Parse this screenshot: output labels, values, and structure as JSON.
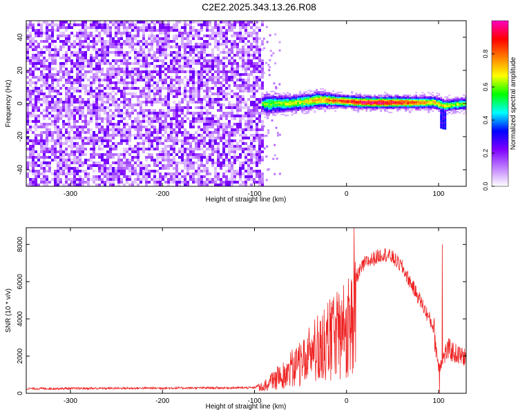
{
  "title": "C2E2.2025.343.13.26.R08",
  "chart_data": [
    {
      "type": "heatmap",
      "title": "C2E2.2025.343.13.26.R08",
      "xlabel": "Height of straight line (km)",
      "ylabel": "Frequency (Hz)",
      "xlim": [
        -348,
        130
      ],
      "ylim": [
        -50,
        50
      ],
      "x_ticks": [
        -300,
        -200,
        -100,
        0,
        100
      ],
      "x_tick_labels": [
        "-300",
        "-200",
        "-100",
        "0",
        "100"
      ],
      "y_ticks": [
        -40,
        -20,
        0,
        20,
        40
      ],
      "y_tick_labels": [
        "-40",
        "-20",
        "0",
        "20",
        "40"
      ],
      "noise_region_x": [
        -348,
        -92
      ],
      "signal_band": [
        {
          "x": -92,
          "freq": 0.0,
          "halfwidth": 5
        },
        {
          "x": -60,
          "freq": 0.5,
          "halfwidth": 4
        },
        {
          "x": -30,
          "freq": 2.5,
          "halfwidth": 4
        },
        {
          "x": -10,
          "freq": 2.0,
          "halfwidth": 3
        },
        {
          "x": 20,
          "freq": 1.0,
          "halfwidth": 3
        },
        {
          "x": 60,
          "freq": 1.0,
          "halfwidth": 3
        },
        {
          "x": 95,
          "freq": 1.0,
          "halfwidth": 3
        },
        {
          "x": 105,
          "freq": -1.0,
          "halfwidth": 3
        },
        {
          "x": 130,
          "freq": 0.5,
          "halfwidth": 3
        }
      ],
      "colorbar": {
        "label": "Normalized spectral amplitude",
        "range": [
          0,
          1
        ],
        "ticks": [
          0.0,
          0.2,
          0.4,
          0.6,
          0.8
        ],
        "tick_labels": [
          "0.0",
          "0.2",
          "0.4",
          "0.6",
          "0.8"
        ],
        "colors": [
          "#ffffff",
          "#c080ff",
          "#7f00ff",
          "#0000ff",
          "#00ffff",
          "#00ff00",
          "#ffff00",
          "#ff8000",
          "#ff0000",
          "#ff00c0"
        ]
      }
    },
    {
      "type": "line",
      "xlabel": "Height of straight line (km)",
      "ylabel": "SNR (10 * v/v)",
      "xlim": [
        -348,
        130
      ],
      "ylim": [
        0,
        8900
      ],
      "x_ticks": [
        -300,
        -200,
        -100,
        0,
        100
      ],
      "x_tick_labels": [
        "-300",
        "-200",
        "-100",
        "0",
        "100"
      ],
      "y_ticks": [
        0,
        2000,
        4000,
        6000,
        8000
      ],
      "y_tick_labels": [
        "0",
        "2000",
        "4000",
        "6000",
        "8000"
      ],
      "series": [
        {
          "name": "SNR",
          "color": "#ee2222",
          "envelope_x": [
            -348,
            -100,
            -90,
            -70,
            -50,
            -30,
            -10,
            0,
            10,
            20,
            40,
            50,
            60,
            80,
            95,
            100,
            110,
            120,
            130
          ],
          "envelope_y": [
            250,
            300,
            600,
            1500,
            2500,
            3800,
            4800,
            5300,
            6200,
            7000,
            7500,
            7300,
            6800,
            5000,
            3500,
            1500,
            2500,
            2200,
            2000
          ],
          "spikes": [
            {
              "x": 8,
              "y": 8900
            },
            {
              "x": 101,
              "y": 0
            },
            {
              "x": 104,
              "y": 8000
            }
          ]
        }
      ]
    }
  ]
}
